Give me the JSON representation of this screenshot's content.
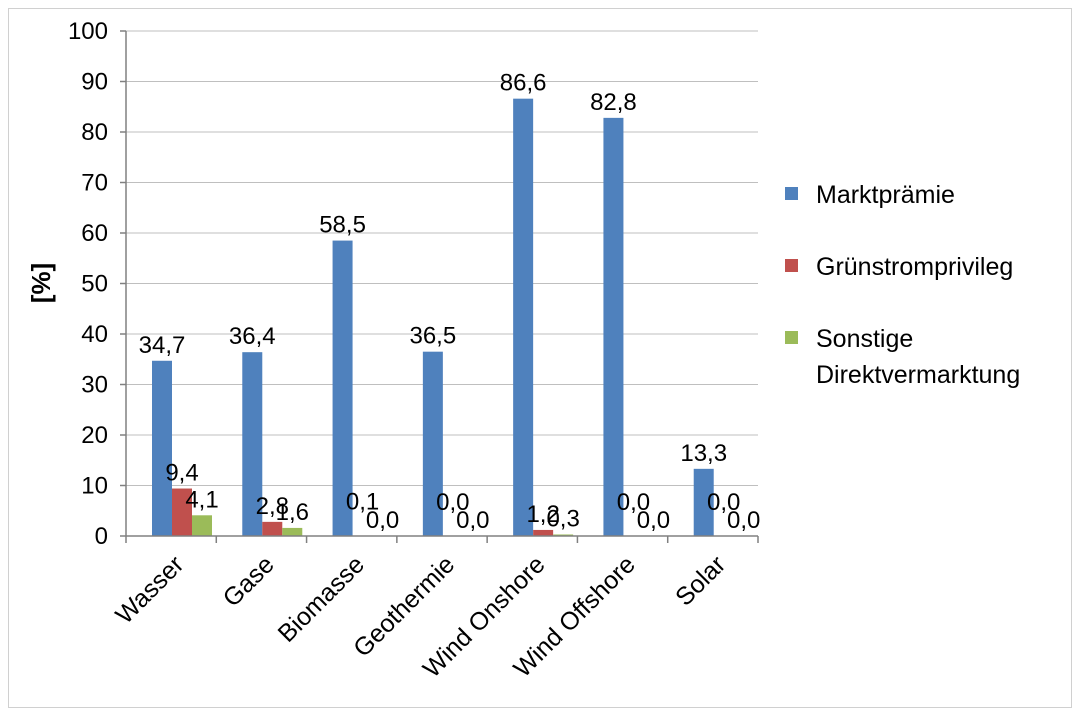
{
  "chart_data": {
    "type": "bar",
    "title": "",
    "xlabel": "",
    "ylabel": "[%]",
    "ylim": [
      0,
      100
    ],
    "yticks": [
      0,
      10,
      20,
      30,
      40,
      50,
      60,
      70,
      80,
      90,
      100
    ],
    "grid": true,
    "legend_position": "right",
    "categories": [
      "Wasser",
      "Gase",
      "Biomasse",
      "Geothermie",
      "Wind Onshore",
      "Wind Offshore",
      "Solar"
    ],
    "series": [
      {
        "name": "Marktprämie",
        "color": "#4F81BD",
        "values": [
          34.7,
          36.4,
          58.5,
          36.5,
          86.6,
          82.8,
          13.3
        ],
        "labels": [
          "34,7",
          "36,4",
          "58,5",
          "36,5",
          "86,6",
          "82,8",
          "13,3"
        ]
      },
      {
        "name": "Grünstromprivileg",
        "color": "#C0504D",
        "values": [
          9.4,
          2.8,
          0.1,
          0.0,
          1.2,
          0.0,
          0.0
        ],
        "labels": [
          "9,4",
          "2,8",
          "0,1",
          "0,0",
          "1,2",
          "0,0",
          "0,0"
        ]
      },
      {
        "name": "Sonstige Direktvermarktung",
        "legend_lines": [
          "Sonstige",
          "Direktvermarktung"
        ],
        "color": "#9BBB59",
        "values": [
          4.1,
          1.6,
          0.0,
          0.0,
          0.3,
          0.0,
          0.0
        ],
        "labels": [
          "4,1",
          "1,6",
          "0,0",
          "0,0",
          "0,3",
          "0,0",
          "0,0"
        ]
      }
    ]
  }
}
